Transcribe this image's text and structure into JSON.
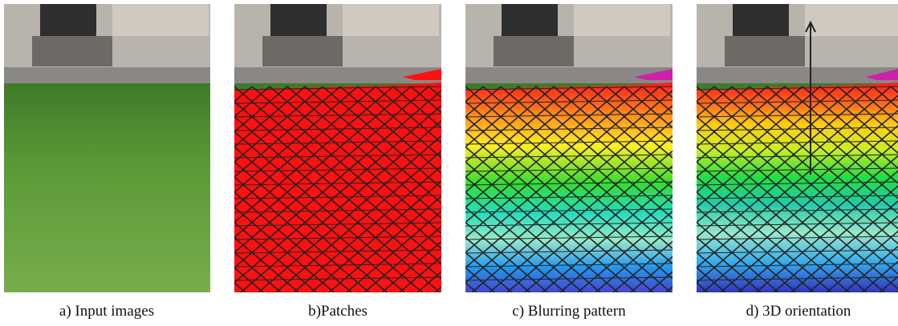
{
  "captions": [
    "a) Input images",
    "b)Patches",
    "c) Blurring pattern",
    "d) 3D orientation"
  ]
}
